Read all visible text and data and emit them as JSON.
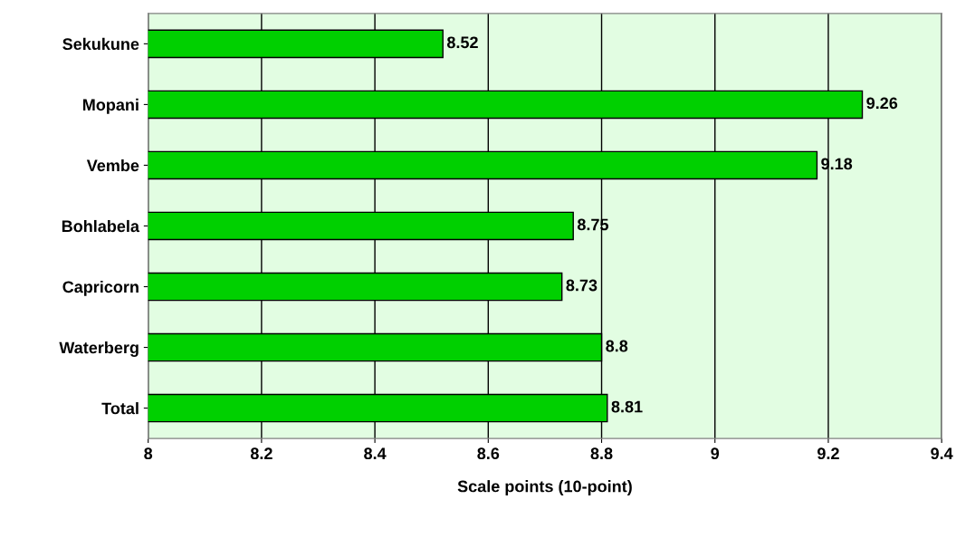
{
  "chart_data": {
    "type": "bar",
    "orientation": "horizontal",
    "xlabel": "Scale points (10-point)",
    "categories": [
      "Sekukune",
      "Mopani",
      "Vembe",
      "Bohlabela",
      "Capricorn",
      "Waterberg",
      "Total"
    ],
    "values": [
      8.52,
      9.26,
      9.18,
      8.75,
      8.73,
      8.8,
      8.81
    ],
    "color": "#00d000",
    "xlim": [
      8,
      9.4
    ],
    "xticks": [
      8,
      8.2,
      8.4,
      8.6,
      8.8,
      9,
      9.2,
      9.4
    ],
    "grid": "x",
    "data_labels": true
  }
}
